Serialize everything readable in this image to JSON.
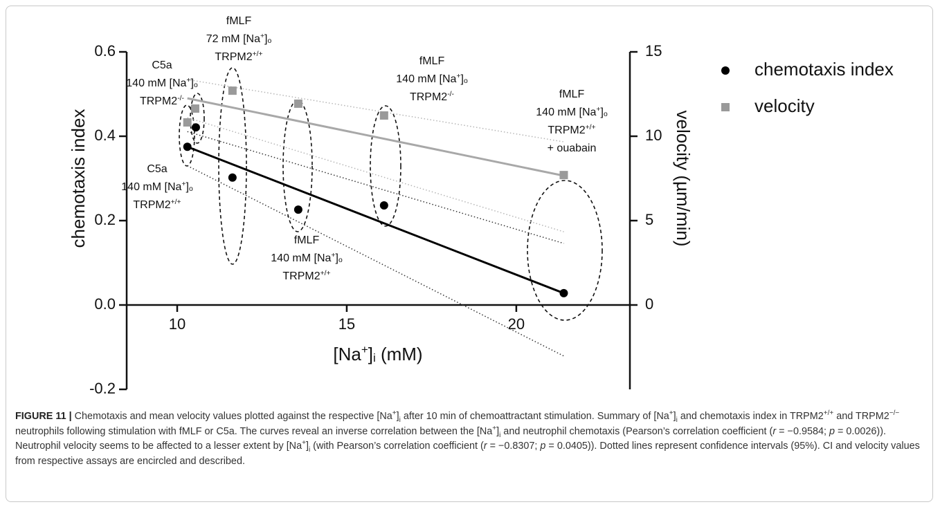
{
  "chart_data": {
    "type": "scatter",
    "xlim": [
      8.51,
      23.35
    ],
    "xticks": [
      10,
      15,
      20
    ],
    "ylim": [
      -0.2,
      0.6
    ],
    "yticks": [
      -0.2,
      {
        "value": 0,
        "label": "0.0"
      },
      0.2,
      0.4,
      0.6
    ],
    "y2lim": [
      -5,
      15
    ],
    "y2ticks": [
      0,
      5,
      10,
      15
    ],
    "x_label": [
      "[Na",
      {
        "sup": "+"
      },
      "]",
      {
        "sub": "i"
      },
      " (mM)"
    ],
    "y_label": "chemotaxis index",
    "y2_label": "velocity (µm/min)",
    "series": [
      {
        "name": "chemotaxis index",
        "color": "#000000",
        "marker": "circle",
        "x": [
          10.3,
          10.55,
          11.63,
          13.57,
          16.1,
          21.4
        ],
        "values": [
          0.375,
          0.421,
          0.302,
          0.226,
          0.236,
          0.028
        ]
      },
      {
        "name": "velocity",
        "color": "#9a9a9a",
        "marker": "square",
        "axis": "y2",
        "x": [
          10.3,
          10.53,
          11.63,
          13.57,
          16.1,
          21.4
        ],
        "values": [
          10.82,
          11.64,
          12.7,
          11.93,
          11.23,
          7.7
        ]
      }
    ],
    "fits": [
      {
        "color": "#000000",
        "x": [
          10.3,
          21.4
        ],
        "values": [
          0.375,
          0.028
        ]
      },
      {
        "color": "#a8a8a8",
        "axis": "y2",
        "x": [
          10.3,
          21.4
        ],
        "values": [
          12.25,
          7.66
        ]
      }
    ],
    "confidence": [
      {
        "color": "#333333",
        "x": [
          10.3,
          21.4
        ],
        "lower": [
          0.33,
          -0.121
        ],
        "upper": [
          0.411,
          0.146
        ]
      },
      {
        "color": "#b5b5b5",
        "axis": "y2",
        "x": [
          10.3,
          21.4
        ],
        "lower": [
          11.1,
          4.34
        ],
        "upper": [
          13.36,
          9.67
        ]
      }
    ],
    "annotations": [
      {
        "lines": [
          [
            "C5a"
          ],
          [
            "140 mM [Na",
            {
              "sup": "+"
            },
            "]",
            {
              "sub": "o"
            }
          ],
          [
            "TRPM2",
            {
              "sup": "-/-"
            }
          ]
        ]
      },
      {
        "lines": [
          [
            "fMLF"
          ],
          [
            "72 mM [Na",
            {
              "sup": "+"
            },
            "]",
            {
              "sub": "o"
            }
          ],
          [
            "TRPM2",
            {
              "sup": "+/+"
            }
          ]
        ]
      },
      {
        "lines": [
          [
            "fMLF"
          ],
          [
            "140 mM [Na",
            {
              "sup": "+"
            },
            "]",
            {
              "sub": "o"
            }
          ],
          [
            "TRPM2",
            {
              "sup": "-/-"
            }
          ]
        ]
      },
      {
        "lines": [
          [
            "fMLF"
          ],
          [
            "140 mM [Na",
            {
              "sup": "+"
            },
            "]",
            {
              "sub": "o"
            }
          ],
          [
            "TRPM2",
            {
              "sup": "+/+"
            }
          ],
          [
            "+ ouabain"
          ]
        ]
      },
      {
        "lines": [
          [
            "C5a"
          ],
          [
            "140 mM [Na",
            {
              "sup": "+"
            },
            "]",
            {
              "sub": "o"
            }
          ],
          [
            "TRPM2",
            {
              "sup": "+/+"
            }
          ]
        ]
      },
      {
        "lines": [
          [
            "fMLF"
          ],
          [
            "140 mM [Na",
            {
              "sup": "+"
            },
            "]",
            {
              "sub": "o"
            }
          ],
          [
            "TRPM2",
            {
              "sup": "+/+"
            }
          ]
        ]
      }
    ],
    "legend": "upper right"
  },
  "caption": [
    {
      "b": "FIGURE 11 |"
    },
    " Chemotaxis and mean velocity values plotted against the respective [Na",
    {
      "sup": "+"
    },
    "]",
    {
      "sub": "i"
    },
    " after 10 min of chemoattractant stimulation. Summary of [Na",
    {
      "sup": "+"
    },
    "]",
    {
      "sub": "i"
    },
    " and chemotaxis index in TRPM2",
    {
      "sup": "+/+"
    },
    " and TRPM2",
    {
      "sup": "−/−"
    },
    " neutrophils following stimulation with fMLF or C5a. The curves reveal an inverse correlation between the [Na",
    {
      "sup": "+"
    },
    "]",
    {
      "sub": "i"
    },
    " and neutrophil chemotaxis (Pearson’s correlation coefficient (",
    {
      "i": "r"
    },
    " = −0.9584; ",
    {
      "i": "p"
    },
    " = 0.0026)). Neutrophil velocity seems to be affected to a lesser extent by [Na",
    {
      "sup": "+"
    },
    "]",
    {
      "sub": "i"
    },
    " (with Pearson’s correlation coefficient (",
    {
      "i": "r"
    },
    " = −0.8307; ",
    {
      "i": "p"
    },
    " = 0.0405)). Dotted lines represent confidence intervals (95%). CI and velocity values from respective assays are encircled and described."
  ]
}
